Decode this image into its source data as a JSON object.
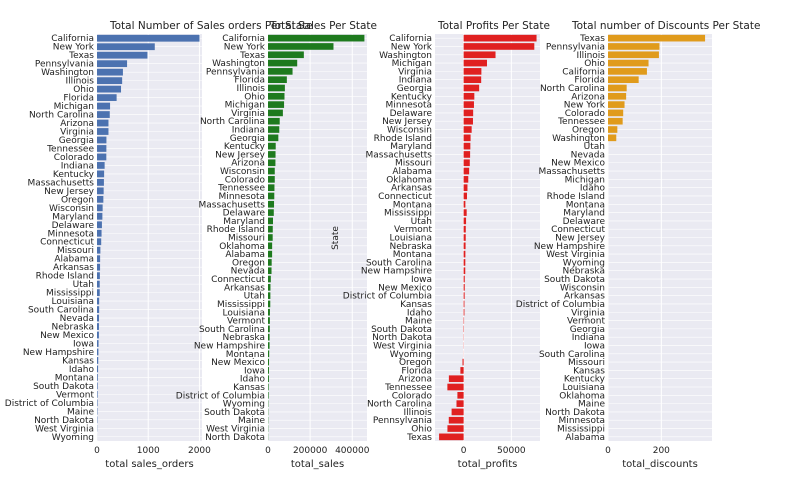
{
  "chart_data": [
    {
      "type": "bar",
      "orientation": "horizontal",
      "title": "Total Number of Sales orders Per State",
      "xlabel": "total sales_orders",
      "ylabel": "",
      "color": "#4c72b0",
      "xlim": [
        0,
        2050
      ],
      "xticks": [
        0,
        1000,
        2000
      ],
      "xtick_labels": [
        "0",
        "1000",
        "2000"
      ],
      "categories": [
        "California",
        "New York",
        "Texas",
        "Pennsylvania",
        "Washington",
        "Illinois",
        "Ohio",
        "Florida",
        "Michigan",
        "North Carolina",
        "Arizona",
        "Virginia",
        "Georgia",
        "Tennessee",
        "Colorado",
        "Indiana",
        "Kentucky",
        "Massachusetts",
        "New Jersey",
        "Oregon",
        "Wisconsin",
        "Maryland",
        "Delaware",
        "Minnesota",
        "Connecticut",
        "Missouri",
        "Alabama",
        "Arkansas",
        "Rhode Island",
        "Utah",
        "Mississippi",
        "Louisiana",
        "South Carolina",
        "Nevada",
        "Nebraska",
        "New Mexico",
        "Iowa",
        "New Hampshire",
        "Kansas",
        "Idaho",
        "Montana",
        "South Dakota",
        "Vermont",
        "District of Columbia",
        "Maine",
        "North Dakota",
        "West Virginia",
        "Wyoming"
      ],
      "values": [
        2001,
        1128,
        985,
        587,
        506,
        491,
        469,
        383,
        255,
        249,
        224,
        224,
        184,
        183,
        182,
        149,
        139,
        135,
        130,
        124,
        110,
        105,
        96,
        89,
        82,
        66,
        61,
        60,
        56,
        53,
        53,
        42,
        42,
        39,
        38,
        37,
        30,
        27,
        24,
        21,
        15,
        12,
        11,
        10,
        8,
        7,
        4,
        1
      ]
    },
    {
      "type": "bar",
      "orientation": "horizontal",
      "title": "Total Sales Per State",
      "xlabel": "total_sales",
      "ylabel": "",
      "color": "#1e7a1e",
      "xlim": [
        0,
        470000
      ],
      "xticks": [
        0,
        200000,
        400000
      ],
      "xtick_labels": [
        "0",
        "200000",
        "400000"
      ],
      "categories": [
        "California",
        "New York",
        "Texas",
        "Washington",
        "Pennsylvania",
        "Florida",
        "Illinois",
        "Ohio",
        "Michigan",
        "Virginia",
        "North Carolina",
        "Indiana",
        "Georgia",
        "Kentucky",
        "New Jersey",
        "Arizona",
        "Wisconsin",
        "Colorado",
        "Tennessee",
        "Minnesota",
        "Massachusetts",
        "Delaware",
        "Maryland",
        "Rhode Island",
        "Missouri",
        "Oklahoma",
        "Alabama",
        "Oregon",
        "Nevada",
        "Connecticut",
        "Arkansas",
        "Utah",
        "Mississippi",
        "Louisiana",
        "Vermont",
        "South Carolina",
        "Nebraska",
        "New Hampshire",
        "Montana",
        "New Mexico",
        "Iowa",
        "Idaho",
        "Kansas",
        "District of Columbia",
        "Wyoming",
        "South Dakota",
        "Maine",
        "West Virginia",
        "North Dakota"
      ],
      "values": [
        457688,
        310876,
        170188,
        138641,
        116512,
        89474,
        80166,
        78258,
        76270,
        70637,
        55603,
        53555,
        49096,
        36592,
        35764,
        35282,
        32115,
        32108,
        30662,
        29863,
        28634,
        27451,
        23706,
        22628,
        22205,
        19683,
        19511,
        17431,
        16729,
        13384,
        11678,
        11220,
        10771,
        9217,
        8929,
        8482,
        7465,
        7293,
        5589,
        4784,
        4580,
        4382,
        2914,
        2865,
        1603,
        1316,
        1271,
        1210,
        920
      ]
    },
    {
      "type": "bar",
      "orientation": "horizontal",
      "title": "Total Profits Per State",
      "xlabel": "total_profits",
      "ylabel": "State",
      "color": "#e02020",
      "xlim": [
        -30000,
        80000
      ],
      "xticks": [
        0,
        50000
      ],
      "xtick_labels": [
        "0",
        "50000"
      ],
      "categories": [
        "California",
        "New York",
        "Washington",
        "Michigan",
        "Virginia",
        "Indiana",
        "Georgia",
        "Kentucky",
        "Minnesota",
        "Delaware",
        "New Jersey",
        "Wisconsin",
        "Rhode Island",
        "Maryland",
        "Massachusetts",
        "Missouri",
        "Alabama",
        "Oklahoma",
        "Arkansas",
        "Connecticut",
        "Montana",
        "Mississippi",
        "Utah",
        "Vermont",
        "Louisiana",
        "Nebraska",
        "Montana",
        "South Carolina",
        "New Hampshire",
        "Iowa",
        "New Mexico",
        "District of Columbia",
        "Kansas",
        "Idaho",
        "Maine",
        "South Dakota",
        "North Dakota",
        "West Virginia",
        "Wyoming",
        "Oregon",
        "Florida",
        "Arizona",
        "Tennessee",
        "Colorado",
        "North Carolina",
        "Illinois",
        "Pennsylvania",
        "Ohio",
        "Texas"
      ],
      "values": [
        76381,
        74039,
        33403,
        24463,
        18598,
        18383,
        16250,
        11200,
        10823,
        9977,
        9773,
        8402,
        7286,
        7031,
        6786,
        6436,
        5787,
        4854,
        4009,
        3511,
        1834,
        3173,
        2547,
        2245,
        2196,
        2037,
        1834,
        1769,
        1707,
        1184,
        1157,
        1060,
        838,
        827,
        454,
        395,
        230,
        186,
        100,
        -1190,
        -3399,
        -15463,
        -17035,
        -6528,
        -7491,
        -12608,
        -15560,
        -16971,
        -25729
      ]
    },
    {
      "type": "bar",
      "orientation": "horizontal",
      "title": "Total number of Discounts Per State",
      "xlabel": "total_discounts",
      "ylabel": "",
      "color": "#e09b1c",
      "xlim": [
        0,
        390
      ],
      "xticks": [
        0,
        200
      ],
      "xtick_labels": [
        "0",
        "200"
      ],
      "categories": [
        "Texas",
        "Pennsylvania",
        "Illinois",
        "Ohio",
        "California",
        "Florida",
        "North Carolina",
        "Arizona",
        "New York",
        "Colorado",
        "Tennessee",
        "Oregon",
        "Washington",
        "Utah",
        "Nevada",
        "New Mexico",
        "Massachusetts",
        "Michigan",
        "Idaho",
        "Rhode Island",
        "Montana",
        "Maryland",
        "Delaware",
        "Connecticut",
        "New Jersey",
        "New Hampshire",
        "West Virginia",
        "Wyoming",
        "Nebraska",
        "South Dakota",
        "Wisconsin",
        "Arkansas",
        "District of Columbia",
        "Virginia",
        "Vermont",
        "Georgia",
        "Indiana",
        "Iowa",
        "South Carolina",
        "Missouri",
        "Kansas",
        "Kentucky",
        "Louisiana",
        "Oklahoma",
        "Maine",
        "North Dakota",
        "Minnesota",
        "Mississippi",
        "Alabama"
      ],
      "values": [
        364,
        193,
        191,
        152,
        146,
        115,
        70,
        68,
        62,
        57,
        55,
        35,
        31,
        0,
        0,
        0,
        0,
        0,
        0,
        0,
        0,
        0,
        0,
        0,
        0,
        0,
        0,
        0,
        0,
        0,
        0,
        0,
        0,
        0,
        0,
        0,
        0,
        0,
        0,
        0,
        0,
        0,
        0,
        0,
        0,
        0,
        0,
        0,
        0
      ]
    }
  ]
}
